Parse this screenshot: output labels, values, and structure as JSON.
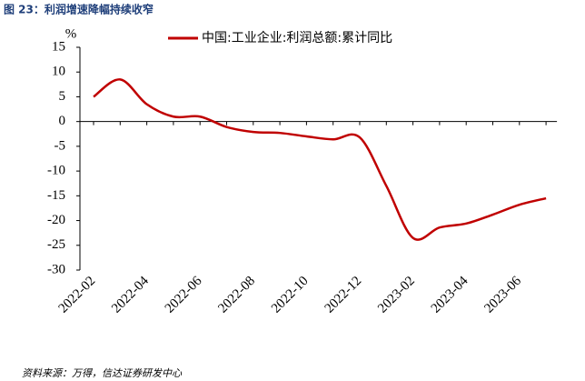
{
  "header": {
    "title": "图 23：利润增速降幅持续收窄"
  },
  "chart_data": {
    "type": "line",
    "y_unit": "%",
    "categories": [
      "2022-02",
      null,
      "2022-04",
      null,
      "2022-06",
      null,
      "2022-08",
      null,
      "2022-10",
      null,
      "2022-12",
      null,
      "2023-02",
      null,
      "2023-04",
      null,
      "2023-06",
      null
    ],
    "series": [
      {
        "name": "中国:工业企业:利润总额:累计同比",
        "color": "#c00000",
        "values": [
          5.0,
          8.5,
          3.5,
          1.0,
          1.0,
          -1.1,
          -2.1,
          -2.3,
          -3.0,
          -3.6,
          -3.2,
          -13.0,
          -23.5,
          -21.4,
          -20.6,
          -18.8,
          -16.8,
          -15.5
        ]
      }
    ],
    "ylim": [
      -30,
      15
    ],
    "yticks": [
      -30,
      -25,
      -20,
      -15,
      -10,
      -5,
      0,
      5,
      10,
      15
    ],
    "legend": "top"
  },
  "footer": {
    "source": "资料来源：万得，信达证券研发中心"
  }
}
